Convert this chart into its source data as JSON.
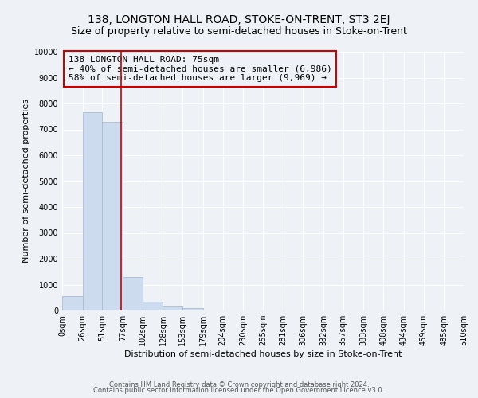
{
  "title1": "138, LONGTON HALL ROAD, STOKE-ON-TRENT, ST3 2EJ",
  "title2": "Size of property relative to semi-detached houses in Stoke-on-Trent",
  "xlabel": "Distribution of semi-detached houses by size in Stoke-on-Trent",
  "ylabel": "Number of semi-detached properties",
  "footer1": "Contains HM Land Registry data © Crown copyright and database right 2024.",
  "footer2": "Contains public sector information licensed under the Open Government Licence v3.0.",
  "annotation_title": "138 LONGTON HALL ROAD: 75sqm",
  "annotation_line1": "← 40% of semi-detached houses are smaller (6,986)",
  "annotation_line2": "58% of semi-detached houses are larger (9,969) →",
  "bar_edges": [
    0,
    26,
    51,
    77,
    102,
    128,
    153,
    179,
    204,
    230,
    255,
    281,
    306,
    332,
    357,
    383,
    408,
    434,
    459,
    485,
    510
  ],
  "bar_heights": [
    550,
    7650,
    7300,
    1300,
    350,
    150,
    100,
    0,
    0,
    0,
    0,
    0,
    0,
    0,
    0,
    0,
    0,
    0,
    0,
    0
  ],
  "bar_color": "#ccdcee",
  "bar_edge_color": "#aabcce",
  "vline_color": "#cc0000",
  "vline_x": 75,
  "annotation_box_edge_color": "#cc0000",
  "ylim": [
    0,
    10000
  ],
  "yticks": [
    0,
    1000,
    2000,
    3000,
    4000,
    5000,
    6000,
    7000,
    8000,
    9000,
    10000
  ],
  "bg_color": "#eef2f6",
  "grid_color": "#ffffff",
  "title_fontsize": 10,
  "subtitle_fontsize": 9,
  "annotation_fontsize": 8,
  "axis_label_fontsize": 8,
  "tick_fontsize": 7,
  "footer_fontsize": 6
}
